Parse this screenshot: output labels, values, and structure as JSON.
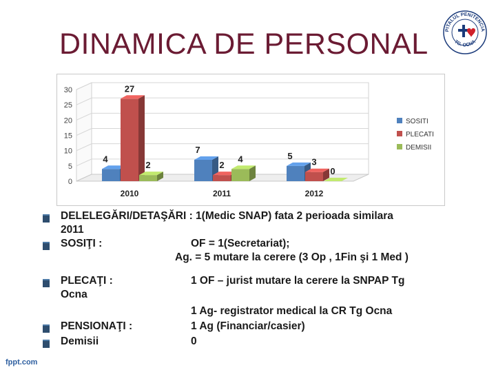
{
  "slide": {
    "title": "DINAMICA DE PERSONAL",
    "footer": "fppt.com"
  },
  "logo": {
    "top_text": "SPITALUL PENITENCIAR",
    "bottom_text": "TG. OCNA",
    "icon": "heart-cross-seal-icon",
    "heart_color": "#d0202a"
  },
  "chart_data": {
    "type": "bar",
    "categories": [
      "2010",
      "2011",
      "2012"
    ],
    "series": [
      {
        "name": "SOSITI",
        "values": [
          4,
          7,
          5
        ],
        "color": "#4f81bd"
      },
      {
        "name": "PLECATI",
        "values": [
          27,
          2,
          3
        ],
        "color": "#c0504d"
      },
      {
        "name": "DEMISII",
        "values": [
          2,
          4,
          0
        ],
        "color": "#9bbb59"
      }
    ],
    "yticks": [
      "0",
      "5",
      "10",
      "15",
      "20",
      "25",
      "30"
    ],
    "ylim": [
      0,
      30
    ],
    "legend_position": "right",
    "grid": true,
    "style": "3d"
  },
  "text": {
    "l1": "DELELEGĂRI/DETAŞĂRI : 1(Medic SNAP)   fata 2 perioada similara",
    "l1b": "2011",
    "l2a": "SOSIŢI      :",
    "l2b": "OF = 1(Secretariat);",
    "l3": "Ag. = 5 mutare la cerere (3 Op , 1Fin şi 1 Med )",
    "l4a": "PLECAŢI :",
    "l4b": "1 OF – jurist mutare la cerere la SNPAP Tg",
    "l4c": "Ocna",
    "l5": "1 Ag- registrator medical la CR Tg Ocna",
    "l6a": "PENSIONAŢI :",
    "l6b": "1 Ag (Financiar/casier)",
    "l7a": "Demisii",
    "l7b": "0"
  }
}
